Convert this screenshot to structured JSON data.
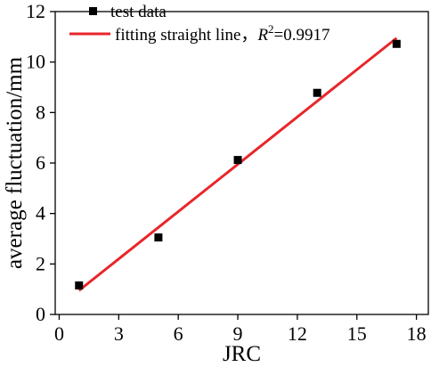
{
  "chart_data": {
    "type": "scatter",
    "xlabel": "JRC",
    "ylabel": "average fluctuation/mm",
    "xlim": [
      -0.2,
      18.6
    ],
    "ylim": [
      0,
      12
    ],
    "xticks": [
      0,
      3,
      6,
      9,
      12,
      15,
      18
    ],
    "yticks": [
      0,
      2,
      4,
      6,
      8,
      10,
      12
    ],
    "grid": false,
    "legend": {
      "position": "top-left",
      "entries": [
        {
          "label": "test data",
          "marker": "square",
          "color": "#000000"
        },
        {
          "label_prefix": "fitting straight line，",
          "label_var": "R",
          "label_sup": "2",
          "label_value": "=0.9917",
          "marker": "line",
          "color": "#e8262a"
        }
      ]
    },
    "series": [
      {
        "name": "test data",
        "kind": "scatter",
        "color": "#000000",
        "points": [
          {
            "x": 1,
            "y": 1.15
          },
          {
            "x": 5,
            "y": 3.05
          },
          {
            "x": 9,
            "y": 6.12
          },
          {
            "x": 13,
            "y": 8.78
          },
          {
            "x": 17,
            "y": 10.72
          }
        ]
      },
      {
        "name": "fitting straight line",
        "kind": "line",
        "color": "#e8262a",
        "points": [
          {
            "x": 1,
            "y": 0.95
          },
          {
            "x": 17,
            "y": 10.95
          }
        ]
      }
    ]
  }
}
